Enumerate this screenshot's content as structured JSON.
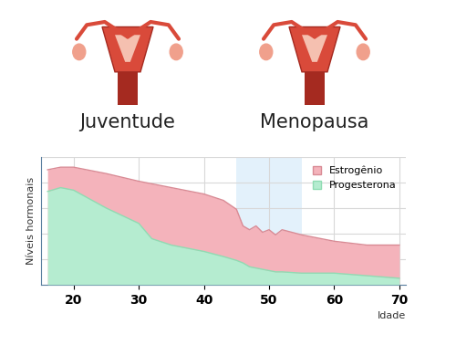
{
  "chart_data": {
    "type": "area",
    "x_label": "Idade",
    "y_label": "Níveis hormonais",
    "annotations": [
      "Juventude",
      "Menopausa"
    ],
    "menopause_range": [
      45,
      55
    ],
    "x": [
      16,
      18,
      20,
      25,
      30,
      32,
      35,
      40,
      43,
      45,
      46,
      47,
      48,
      49,
      50,
      51,
      52,
      55,
      60,
      65,
      70
    ],
    "series": [
      {
        "name": "Estrogênio",
        "color": "#f4b3bb",
        "values": [
          90,
          92,
          92,
          87,
          81,
          79,
          76,
          71,
          66,
          59,
          46,
          43,
          46,
          41,
          43,
          39,
          43,
          39,
          34,
          31,
          31
        ]
      },
      {
        "name": "Progesterona",
        "color": "#b5ecd0",
        "values": [
          73,
          76,
          74,
          60,
          48,
          36,
          31,
          26,
          22,
          19,
          17,
          14,
          13,
          12,
          11,
          10,
          10,
          9,
          9,
          7,
          5
        ]
      }
    ],
    "xlim": [
      15,
      71
    ],
    "xticks": [
      20,
      30,
      40,
      50,
      60,
      70
    ],
    "ylim": [
      0,
      100
    ],
    "yticks": [
      0,
      20,
      40,
      60,
      80,
      100
    ],
    "grid": true,
    "legend": "upper right",
    "tick_labels": "x"
  }
}
